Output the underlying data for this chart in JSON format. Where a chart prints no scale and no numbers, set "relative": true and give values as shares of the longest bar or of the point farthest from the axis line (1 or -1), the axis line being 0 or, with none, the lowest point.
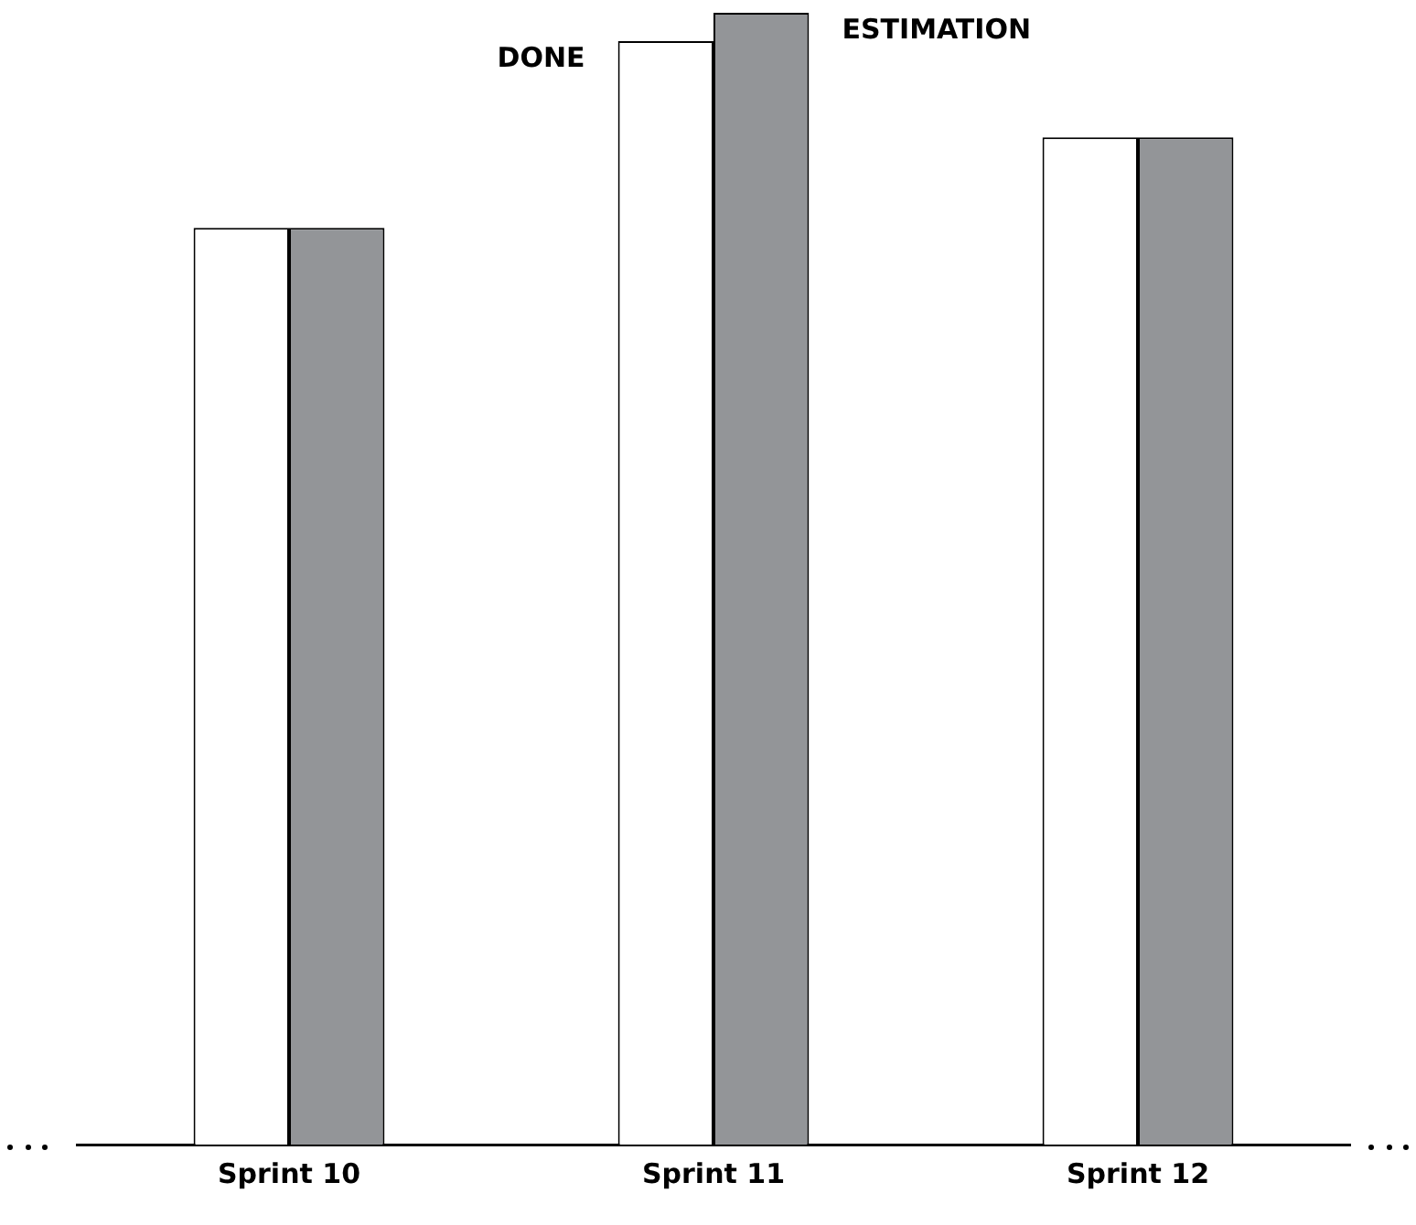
{
  "chart_data": {
    "type": "bar",
    "relative": true,
    "categories": [
      "Sprint 10",
      "Sprint 11",
      "Sprint 12"
    ],
    "series": [
      {
        "name": "DONE",
        "color": "#ffffff",
        "values": [
          0.81,
          0.975,
          0.89
        ]
      },
      {
        "name": "ESTIMATION",
        "color": "#939598",
        "values": [
          0.81,
          1,
          0.89
        ]
      }
    ],
    "grid": false,
    "legend": false
  }
}
